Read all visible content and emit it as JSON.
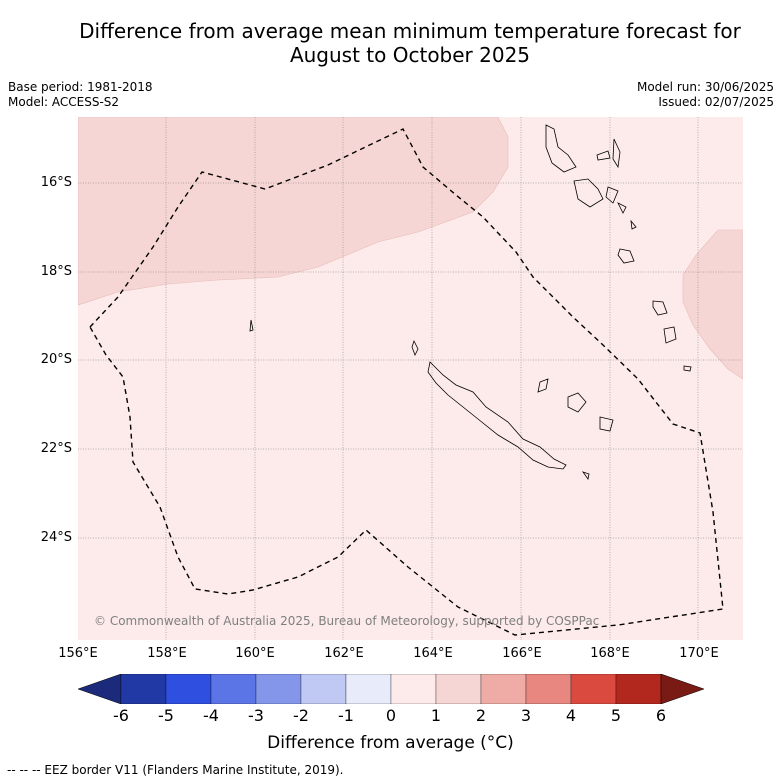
{
  "title_line1": "Difference from average mean minimum temperature forecast for",
  "title_line2": "August to October 2025",
  "base_period": "Base period: 1981-2018",
  "model": "Model: ACCESS-S2",
  "model_run": "Model run: 30/06/2025",
  "issued": "Issued: 02/07/2025",
  "lat_labels": [
    "16°S",
    "18°S",
    "20°S",
    "22°S",
    "24°S"
  ],
  "lon_labels": [
    "156°E",
    "158°E",
    "160°E",
    "162°E",
    "164°E",
    "166°E",
    "168°E",
    "170°E"
  ],
  "copyright": "© Commonwealth of Australia 2025, Bureau of Meteorology, supported by COSPPac",
  "colorbar": {
    "ticks": [
      "-6",
      "-5",
      "-4",
      "-3",
      "-2",
      "-1",
      "0",
      "1",
      "2",
      "3",
      "4",
      "5",
      "6"
    ],
    "colors": [
      "#2139a4",
      "#2f4fe0",
      "#5b74e6",
      "#8496ea",
      "#c0c8f4",
      "#e8ebfa",
      "#fcebea",
      "#f6d6d4",
      "#efaba5",
      "#e7877f",
      "#db4a3f",
      "#b2281f"
    ],
    "low_extend": "#1b2a7a",
    "high_extend": "#7a1a14",
    "label": "Difference from average (°C)"
  },
  "footer": "--  --  -- EEZ border V11 (Flanders Marine Institute, 2019).",
  "map_colors": {
    "ocean_base": "#fcebea",
    "warm_patch": "#f6d6d4",
    "grid": "#777777"
  }
}
